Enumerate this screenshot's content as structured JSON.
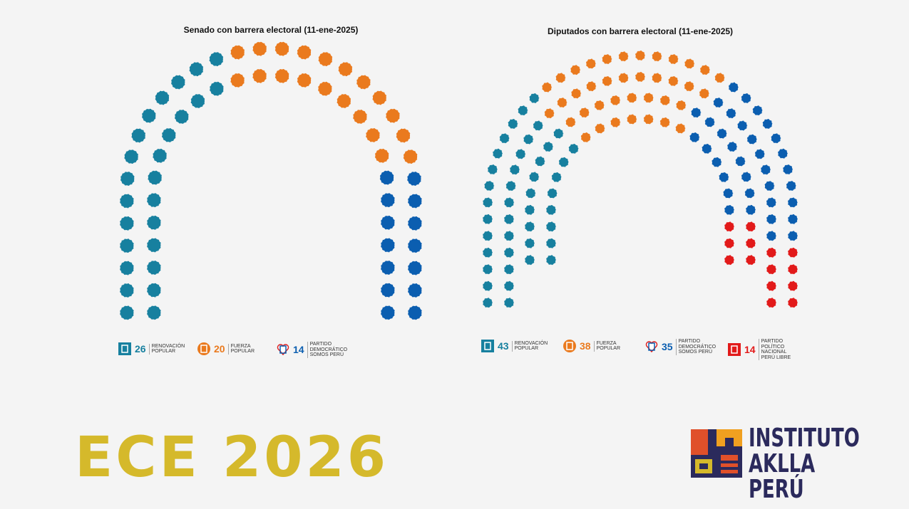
{
  "chart_data": [
    {
      "type": "parliament",
      "title": "Senado con barrera electoral (11-ene-2025)",
      "series": [
        {
          "name": "RENOVACIÓN POPULAR",
          "color": "#17809f",
          "values": [
            26
          ]
        },
        {
          "name": "FUERZA POPULAR",
          "color": "#ea7a1e",
          "values": [
            20
          ]
        },
        {
          "name": "PARTIDO DEMOCRÁTICO SOMOS PERÚ",
          "color": "#0b5eb0",
          "values": [
            14
          ]
        }
      ]
    },
    {
      "type": "parliament",
      "title": "Diputados con barrera electoral (11-ene-2025)",
      "series": [
        {
          "name": "RENOVACIÓN POPULAR",
          "color": "#17809f",
          "values": [
            43
          ]
        },
        {
          "name": "FUERZA POPULAR",
          "color": "#ea7a1e",
          "values": [
            38
          ]
        },
        {
          "name": "PARTIDO DEMOCRÁTICO SOMOS PERÚ",
          "color": "#0b5eb0",
          "values": [
            35
          ]
        },
        {
          "name": "PARTIDO POLÍTICO NACIONAL PERÚ LIBRE",
          "color": "#e21a1a",
          "values": [
            14
          ]
        }
      ]
    }
  ],
  "footer": {
    "title": "ECE 2026",
    "logo_line1": "INSTITUTO",
    "logo_line2": "AKLLA PERÚ"
  }
}
